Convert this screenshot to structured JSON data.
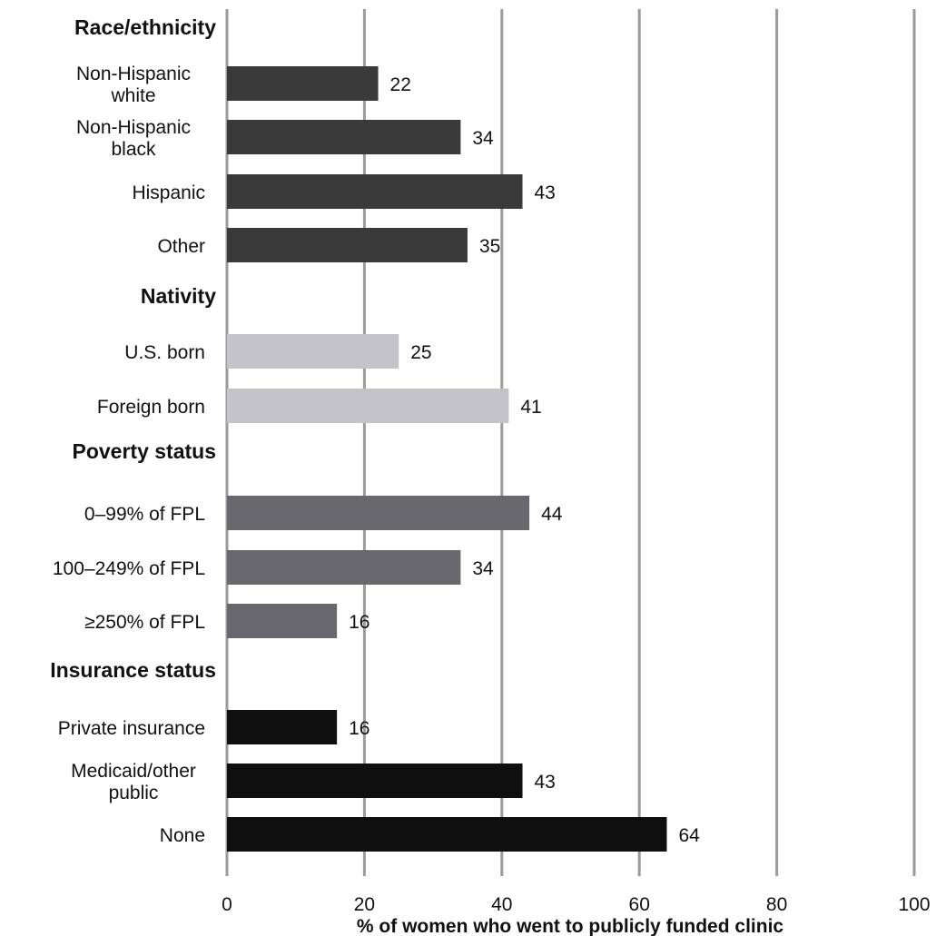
{
  "chart_data": {
    "type": "bar",
    "orientation": "horizontal",
    "xlabel": "% of women who went to publicly funded clinic",
    "xlim": [
      0,
      100
    ],
    "xticks": [
      0,
      20,
      40,
      60,
      80,
      100
    ],
    "grid": "vertical",
    "groups": [
      {
        "name": "Race/ethnicity",
        "color": "#3a3a3a",
        "items": [
          {
            "label": [
              "Non-Hispanic",
              "white"
            ],
            "value": 22
          },
          {
            "label": [
              "Non-Hispanic",
              "black"
            ],
            "value": 34
          },
          {
            "label": [
              "Hispanic"
            ],
            "value": 43
          },
          {
            "label": [
              "Other"
            ],
            "value": 35
          }
        ]
      },
      {
        "name": "Nativity",
        "color": "#c4c3c8",
        "items": [
          {
            "label": [
              "U.S. born"
            ],
            "value": 25
          },
          {
            "label": [
              "Foreign born"
            ],
            "value": 41
          }
        ]
      },
      {
        "name": "Poverty status",
        "color": "#68686d",
        "items": [
          {
            "label": [
              "0–99% of FPL"
            ],
            "value": 44
          },
          {
            "label": [
              "100–249% of FPL"
            ],
            "value": 34
          },
          {
            "label": [
              "≥250% of FPL"
            ],
            "value": 16
          }
        ]
      },
      {
        "name": "Insurance status",
        "color": "#0f0f0f",
        "items": [
          {
            "label": [
              "Private insurance"
            ],
            "value": 16
          },
          {
            "label": [
              "Medicaid/other",
              "public"
            ],
            "value": 43
          },
          {
            "label": [
              "None"
            ],
            "value": 64
          }
        ]
      }
    ]
  }
}
